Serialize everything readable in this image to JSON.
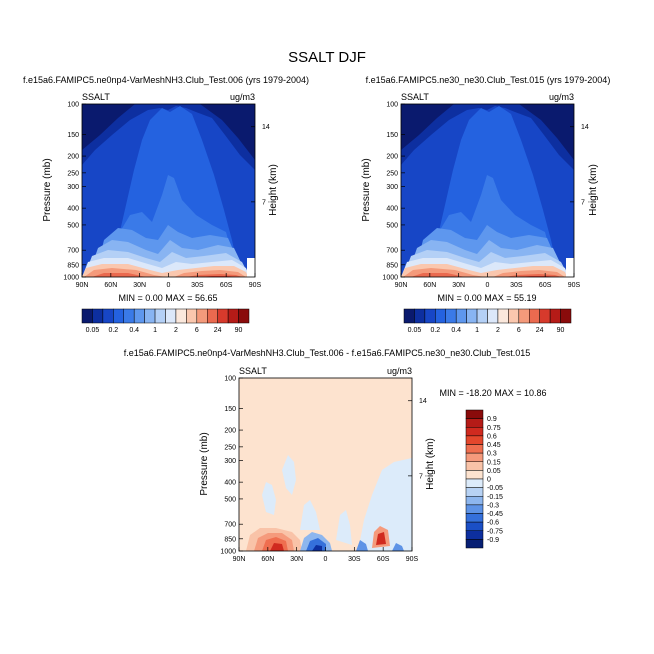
{
  "title": "SSALT DJF",
  "panels": [
    {
      "subtitle": "f.e15a6.FAMIPC5.ne0np4-VarMeshNH3.Club_Test.006 (yrs 1979-2004)",
      "var_label": "SSALT",
      "unit_label": "ug/m3",
      "ylabel": "Pressure (mb)",
      "ylabel_right": "Height (km)",
      "stats": "MIN =   0.00  MAX =  56.65"
    },
    {
      "subtitle": "f.e15a6.FAMIPC5.ne30_ne30.Club_Test.015 (yrs 1979-2004)",
      "var_label": "SSALT",
      "unit_label": "ug/m3",
      "ylabel": "Pressure (mb)",
      "ylabel_right": "Height (km)",
      "stats": "MIN =   0.00  MAX =  55.19"
    },
    {
      "subtitle": "f.e15a6.FAMIPC5.ne0np4-VarMeshNH3.Club_Test.006 - f.e15a6.FAMIPC5.ne30_ne30.Club_Test.015",
      "var_label": "SSALT",
      "unit_label": "ug/m3",
      "ylabel": "Pressure (mb)",
      "ylabel_right": "Height (km)",
      "stats": "MIN = -18.20  MAX =  10.86"
    }
  ],
  "chart_data": [
    {
      "type": "heatmap",
      "xlabel": "",
      "ylabel": "Pressure (mb)",
      "x_ticks": [
        "90N",
        "60N",
        "30N",
        "0",
        "30S",
        "60S",
        "90S"
      ],
      "x_tick_values": [
        90,
        60,
        30,
        0,
        -30,
        -60,
        -90
      ],
      "y_ticks": [
        "100",
        "150",
        "200",
        "250",
        "300",
        "400",
        "500",
        "700",
        "850",
        "1000"
      ],
      "y_tick_values": [
        100,
        150,
        200,
        250,
        300,
        400,
        500,
        700,
        850,
        1000
      ],
      "y_scale": "log",
      "y_right_ticks": [
        "14",
        "7"
      ],
      "y_right_tick_values": [
        14,
        7
      ],
      "xlim": [
        90,
        -90
      ],
      "ylim": [
        100,
        1000
      ],
      "min": 0.0,
      "max": 56.65,
      "colorbar_labels": [
        "0.05",
        "0.2",
        "0.4",
        "1",
        "2",
        "6",
        "24",
        "90"
      ],
      "colorbar_levels": [
        0.05,
        0.1,
        0.2,
        0.3,
        0.4,
        0.6,
        1,
        1.5,
        2,
        4,
        6,
        12,
        24,
        48,
        90
      ],
      "colors": [
        "#0a1a6e",
        "#0d2fa0",
        "#1746c6",
        "#2462e0",
        "#3a7ae8",
        "#5e97ee",
        "#88b4f2",
        "#b4d0f6",
        "#dce8fa",
        "#fbe8dc",
        "#fac7ae",
        "#f49a7b",
        "#ea6a4f",
        "#d73a2c",
        "#b51b17",
        "#8a0b0b"
      ]
    },
    {
      "type": "heatmap",
      "xlabel": "",
      "ylabel": "Pressure (mb)",
      "x_ticks": [
        "90N",
        "60N",
        "30N",
        "0",
        "30S",
        "60S",
        "90S"
      ],
      "x_tick_values": [
        90,
        60,
        30,
        0,
        -30,
        -60,
        -90
      ],
      "y_ticks": [
        "100",
        "150",
        "200",
        "250",
        "300",
        "400",
        "500",
        "700",
        "850",
        "1000"
      ],
      "y_tick_values": [
        100,
        150,
        200,
        250,
        300,
        400,
        500,
        700,
        850,
        1000
      ],
      "y_scale": "log",
      "y_right_ticks": [
        "14",
        "7"
      ],
      "y_right_tick_values": [
        14,
        7
      ],
      "xlim": [
        90,
        -90
      ],
      "ylim": [
        100,
        1000
      ],
      "min": 0.0,
      "max": 55.19,
      "colorbar_labels": [
        "0.05",
        "0.2",
        "0.4",
        "1",
        "2",
        "6",
        "24",
        "90"
      ],
      "colorbar_levels": [
        0.05,
        0.1,
        0.2,
        0.3,
        0.4,
        0.6,
        1,
        1.5,
        2,
        4,
        6,
        12,
        24,
        48,
        90
      ],
      "colors": [
        "#0a1a6e",
        "#0d2fa0",
        "#1746c6",
        "#2462e0",
        "#3a7ae8",
        "#5e97ee",
        "#88b4f2",
        "#b4d0f6",
        "#dce8fa",
        "#fbe8dc",
        "#fac7ae",
        "#f49a7b",
        "#ea6a4f",
        "#d73a2c",
        "#b51b17",
        "#8a0b0b"
      ]
    },
    {
      "type": "heatmap",
      "xlabel": "",
      "ylabel": "Pressure (mb)",
      "x_ticks": [
        "90N",
        "60N",
        "30N",
        "0",
        "30S",
        "60S",
        "90S"
      ],
      "x_tick_values": [
        90,
        60,
        30,
        0,
        -30,
        -60,
        -90
      ],
      "y_ticks": [
        "100",
        "150",
        "200",
        "250",
        "300",
        "400",
        "500",
        "700",
        "850",
        "1000"
      ],
      "y_tick_values": [
        100,
        150,
        200,
        250,
        300,
        400,
        500,
        700,
        850,
        1000
      ],
      "y_scale": "log",
      "y_right_ticks": [
        "14",
        "7"
      ],
      "y_right_tick_values": [
        14,
        7
      ],
      "xlim": [
        90,
        -90
      ],
      "ylim": [
        100,
        1000
      ],
      "min": -18.2,
      "max": 10.86,
      "colorbar_labels": [
        "0.9",
        "0.75",
        "0.6",
        "0.45",
        "0.3",
        "0.15",
        "0.05",
        "0",
        "-0.05",
        "-0.15",
        "-0.3",
        "-0.45",
        "-0.6",
        "-0.75",
        "-0.9"
      ],
      "colorbar_levels": [
        0.9,
        0.75,
        0.6,
        0.45,
        0.3,
        0.15,
        0.05,
        0,
        -0.05,
        -0.15,
        -0.3,
        -0.45,
        -0.6,
        -0.75,
        -0.9
      ],
      "colors": [
        "#8a0b0b",
        "#b51b17",
        "#d02a1f",
        "#e4472c",
        "#ef6e4f",
        "#f59a7c",
        "#f9c3a8",
        "#fde3cf",
        "#dcebfa",
        "#b7d2f4",
        "#8db6ee",
        "#5e93e6",
        "#3570db",
        "#1b4fc6",
        "#0d2f9f",
        "#071f74"
      ]
    }
  ]
}
